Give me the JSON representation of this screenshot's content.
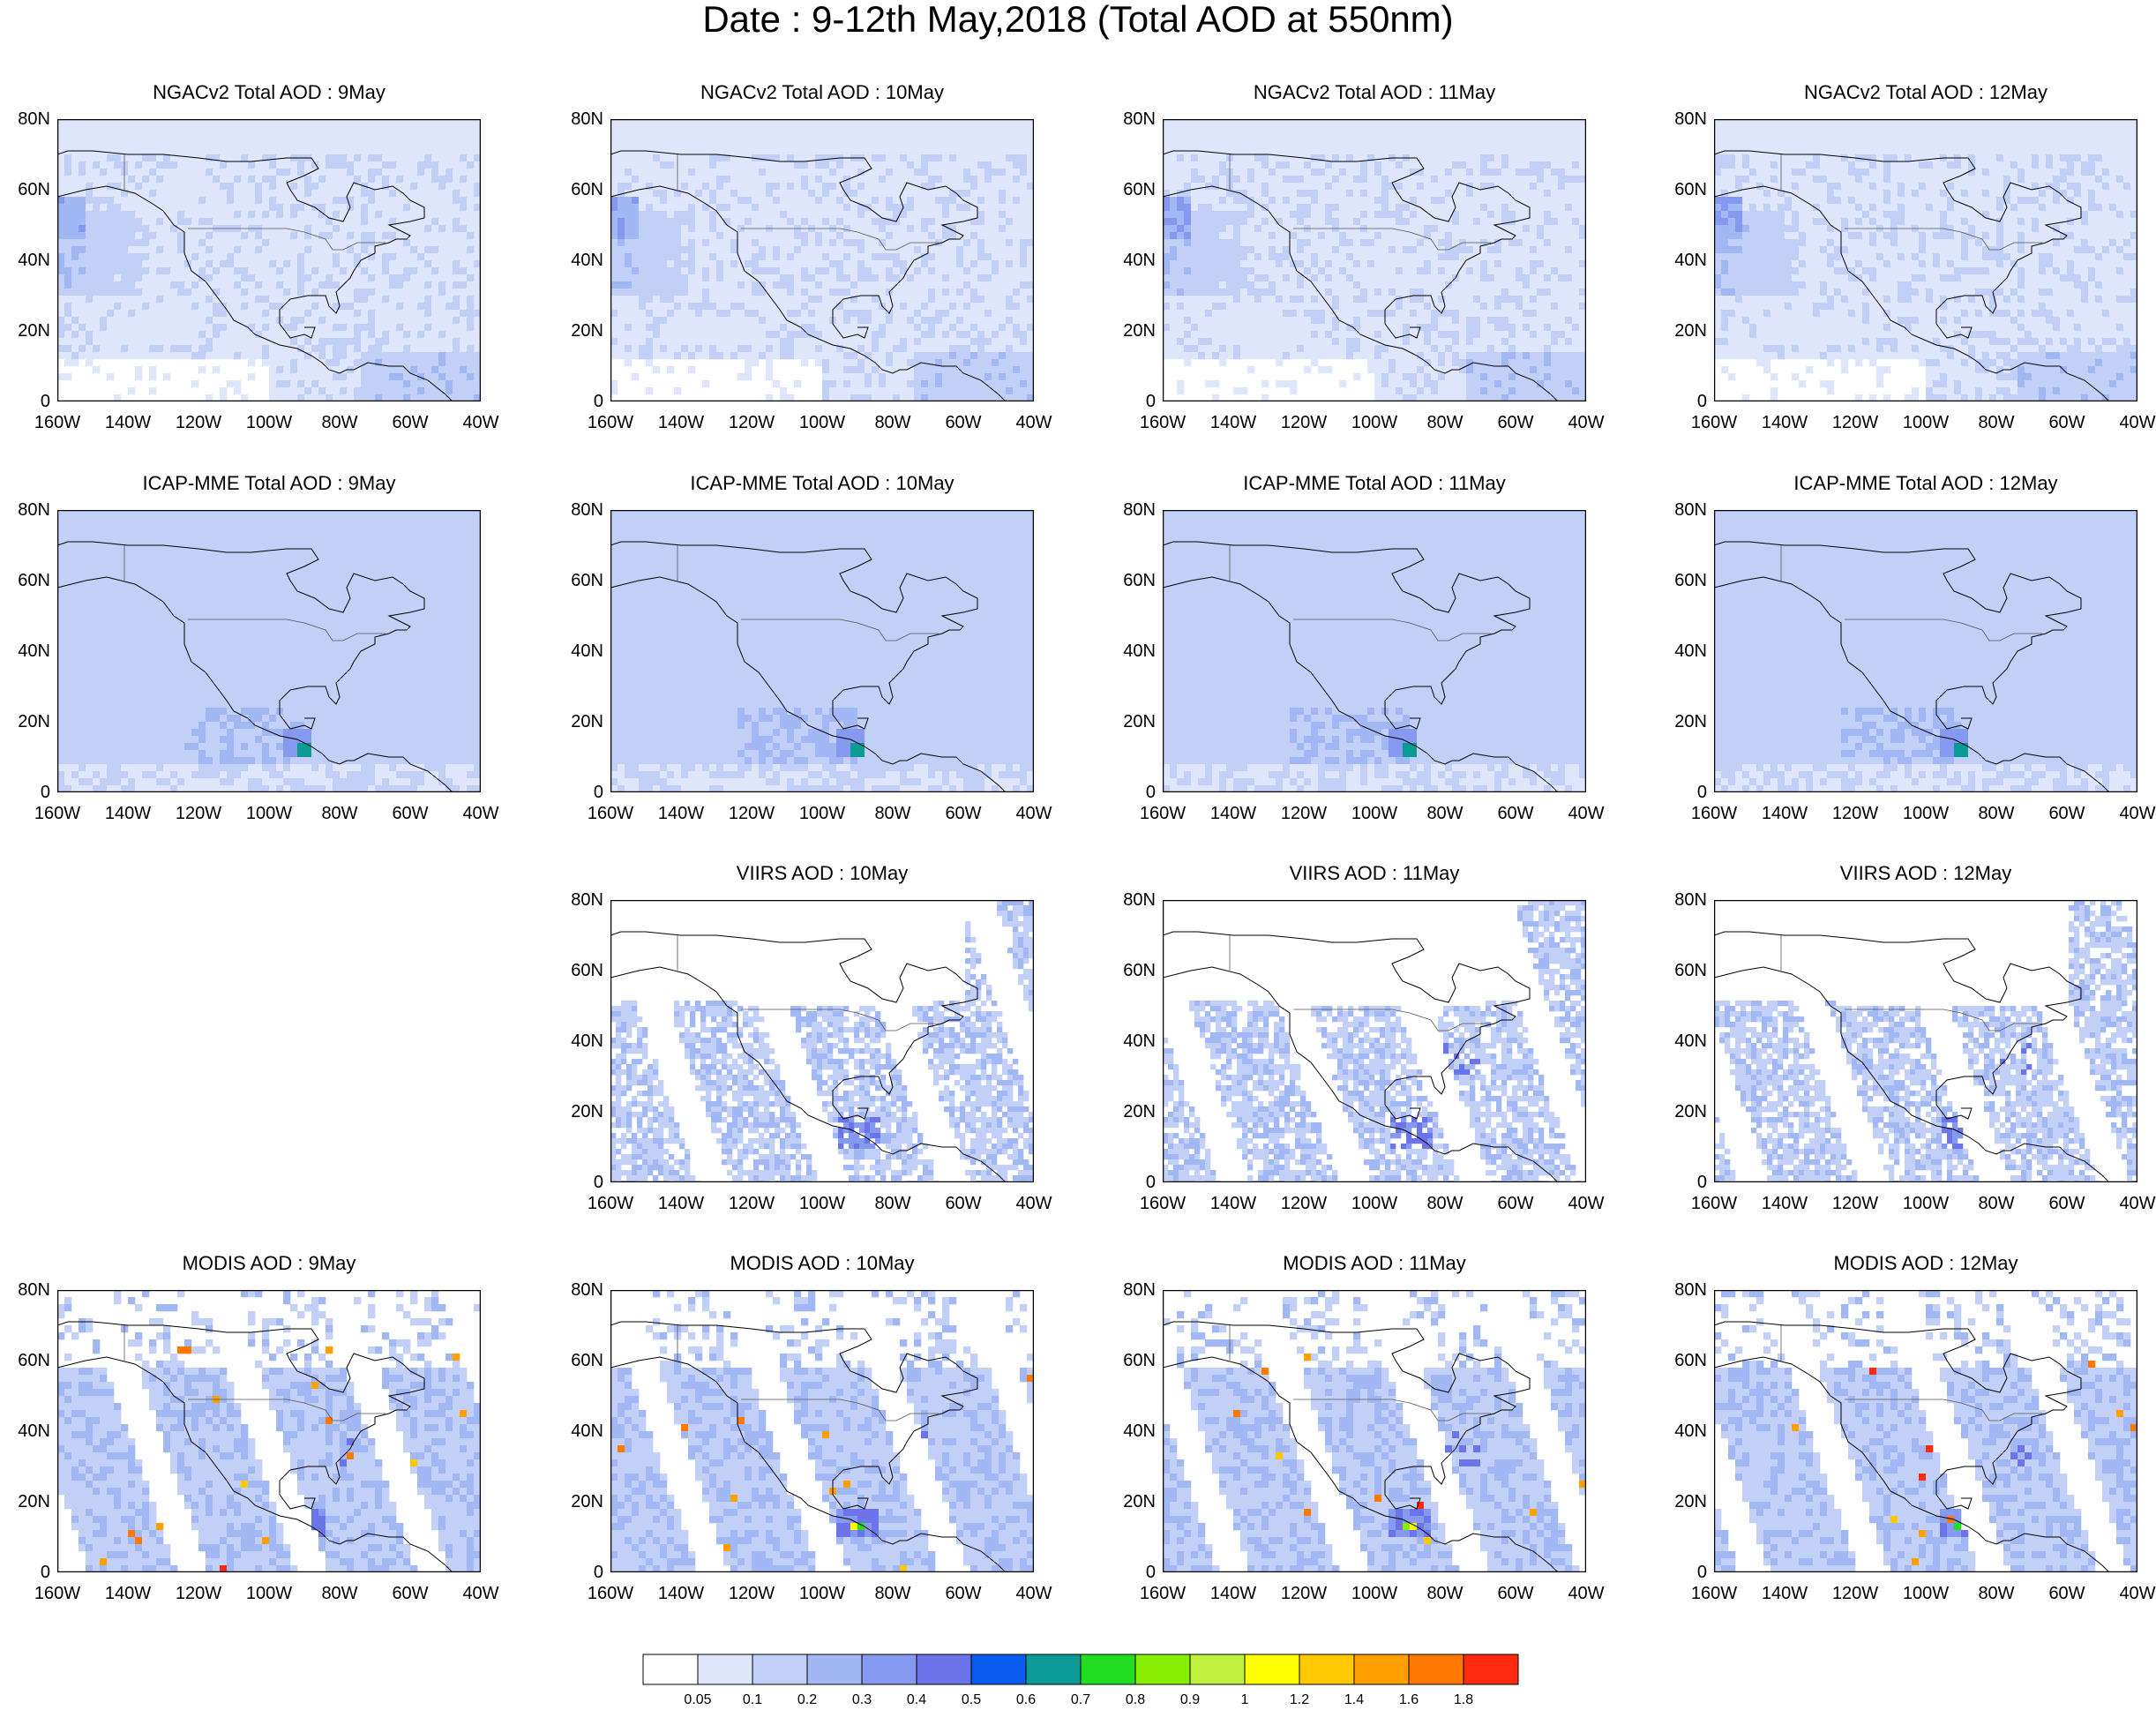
{
  "title": "Date : 9-12th May,2018 (Total AOD at 550nm)",
  "x_ticks": [
    "160W",
    "140W",
    "120W",
    "100W",
    "80W",
    "60W",
    "40W"
  ],
  "y_ticks": [
    "80N",
    "60N",
    "40N",
    "20N",
    "0"
  ],
  "panels": [
    {
      "id": "ngac-9",
      "title": "NGACv2 Total AOD : 9May",
      "row": 0,
      "col": 0,
      "product": "ngac",
      "day": 0
    },
    {
      "id": "ngac-10",
      "title": "NGACv2 Total AOD : 10May",
      "row": 0,
      "col": 1,
      "product": "ngac",
      "day": 1
    },
    {
      "id": "ngac-11",
      "title": "NGACv2 Total AOD : 11May",
      "row": 0,
      "col": 2,
      "product": "ngac",
      "day": 2
    },
    {
      "id": "ngac-12",
      "title": "NGACv2 Total AOD : 12May",
      "row": 0,
      "col": 3,
      "product": "ngac",
      "day": 3
    },
    {
      "id": "icap-9",
      "title": "ICAP-MME Total AOD : 9May",
      "row": 1,
      "col": 0,
      "product": "icap",
      "day": 0
    },
    {
      "id": "icap-10",
      "title": "ICAP-MME Total AOD : 10May",
      "row": 1,
      "col": 1,
      "product": "icap",
      "day": 1
    },
    {
      "id": "icap-11",
      "title": "ICAP-MME Total AOD : 11May",
      "row": 1,
      "col": 2,
      "product": "icap",
      "day": 2
    },
    {
      "id": "icap-12",
      "title": "ICAP-MME Total AOD : 12May",
      "row": 1,
      "col": 3,
      "product": "icap",
      "day": 3
    },
    {
      "id": "viirs-10",
      "title": "VIIRS AOD : 10May",
      "row": 2,
      "col": 1,
      "product": "viirs",
      "day": 1
    },
    {
      "id": "viirs-11",
      "title": "VIIRS AOD : 11May",
      "row": 2,
      "col": 2,
      "product": "viirs",
      "day": 2
    },
    {
      "id": "viirs-12",
      "title": "VIIRS AOD : 12May",
      "row": 2,
      "col": 3,
      "product": "viirs",
      "day": 3
    },
    {
      "id": "modis-9",
      "title": "MODIS AOD : 9May",
      "row": 3,
      "col": 0,
      "product": "modis",
      "day": 0
    },
    {
      "id": "modis-10",
      "title": "MODIS AOD : 10May",
      "row": 3,
      "col": 1,
      "product": "modis",
      "day": 1
    },
    {
      "id": "modis-11",
      "title": "MODIS AOD : 11May",
      "row": 3,
      "col": 2,
      "product": "modis",
      "day": 2
    },
    {
      "id": "modis-12",
      "title": "MODIS AOD : 12May",
      "row": 3,
      "col": 3,
      "product": "modis",
      "day": 3
    }
  ],
  "colorbar": {
    "labels": [
      "0.05",
      "0.1",
      "0.2",
      "0.3",
      "0.4",
      "0.5",
      "0.6",
      "0.7",
      "0.8",
      "0.9",
      "1",
      "1.2",
      "1.4",
      "1.6",
      "1.8"
    ],
    "colors": [
      "#ffffff",
      "#dfe6fb",
      "#c2d0f8",
      "#a2b8f5",
      "#8599f0",
      "#6b74e8",
      "#0a5cf0",
      "#0c9a96",
      "#22dd22",
      "#88ee00",
      "#c0f040",
      "#ffff00",
      "#ffc800",
      "#ffa000",
      "#ff7800",
      "#ff2a10"
    ]
  }
}
